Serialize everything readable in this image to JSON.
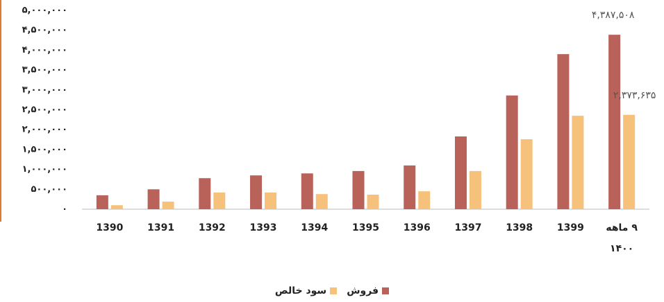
{
  "chart_data": {
    "type": "bar",
    "categories": [
      "1390",
      "1391",
      "1392",
      "1393",
      "1394",
      "1395",
      "1396",
      "1397",
      "1398",
      "1399",
      "۹ ماهه ۱۴۰۰"
    ],
    "series": [
      {
        "name": "فروش",
        "color": "#b9625a",
        "values": [
          350000,
          500000,
          780000,
          850000,
          900000,
          960000,
          1100000,
          1830000,
          2860000,
          3900000,
          4387508
        ],
        "value_labels": [
          null,
          null,
          null,
          null,
          null,
          null,
          null,
          null,
          null,
          null,
          "۴,۳۸۷,۵۰۸"
        ]
      },
      {
        "name": "سود خالص",
        "color": "#f6c27b",
        "values": [
          100000,
          190000,
          420000,
          420000,
          380000,
          365000,
          450000,
          960000,
          1760000,
          2350000,
          2373635
        ],
        "value_labels": [
          null,
          null,
          null,
          null,
          null,
          null,
          null,
          null,
          null,
          null,
          "۲,۳۷۳,۶۳۵"
        ]
      }
    ],
    "ylim": [
      0,
      5000000
    ],
    "yticks": [
      {
        "value": 0,
        "label": "۰"
      },
      {
        "value": 500000,
        "label": "۵۰۰,۰۰۰"
      },
      {
        "value": 1000000,
        "label": "۱,۰۰۰,۰۰۰"
      },
      {
        "value": 1500000,
        "label": "۱,۵۰۰,۰۰۰"
      },
      {
        "value": 2000000,
        "label": "۲,۰۰۰,۰۰۰"
      },
      {
        "value": 2500000,
        "label": "۲,۵۰۰,۰۰۰"
      },
      {
        "value": 3000000,
        "label": "۳,۰۰۰,۰۰۰"
      },
      {
        "value": 3500000,
        "label": "۳,۵۰۰,۰۰۰"
      },
      {
        "value": 4000000,
        "label": "۴,۰۰۰,۰۰۰"
      },
      {
        "value": 4500000,
        "label": "۴,۵۰۰,۰۰۰"
      },
      {
        "value": 5000000,
        "label": "۵,۰۰۰,۰۰۰"
      }
    ],
    "grid": false
  }
}
